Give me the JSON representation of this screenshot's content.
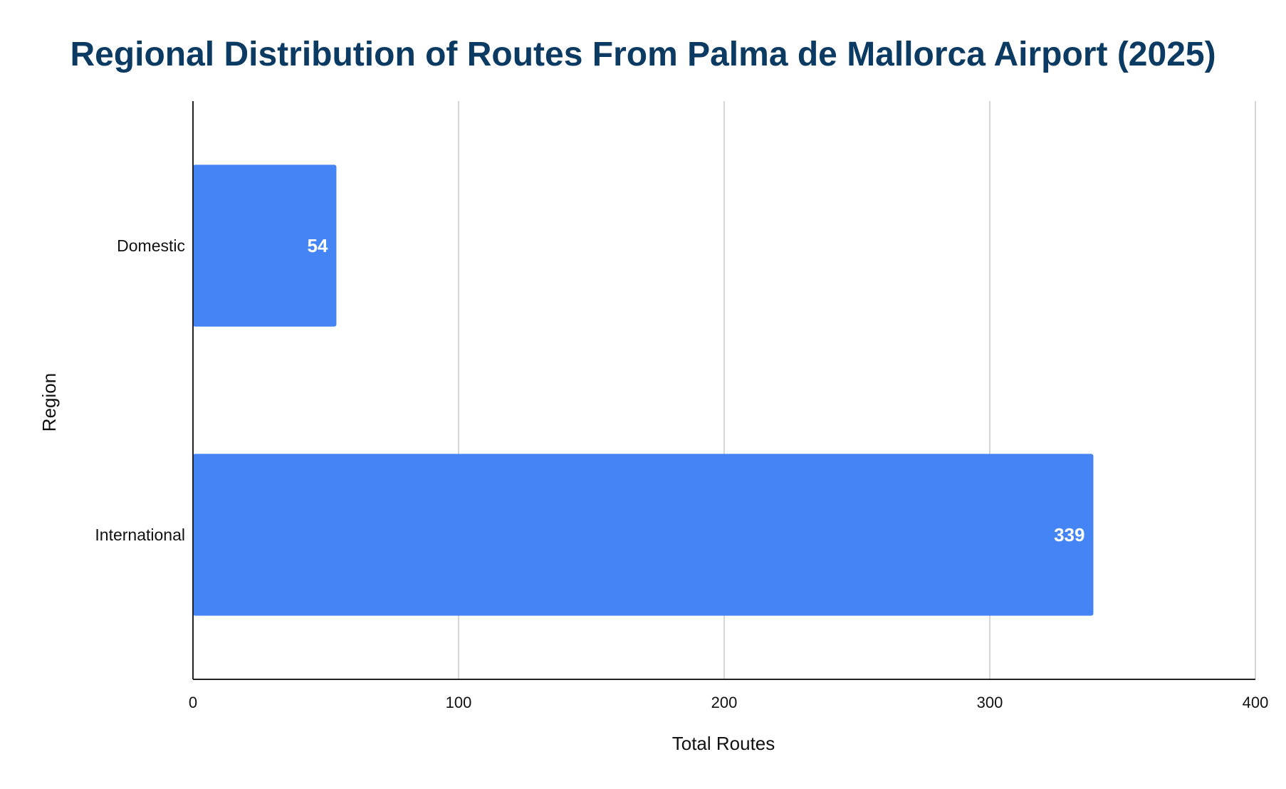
{
  "chart_data": {
    "type": "bar",
    "orientation": "horizontal",
    "title": "Regional Distribution of Routes From Palma de Mallorca Airport (2025)",
    "xlabel": "Total Routes",
    "ylabel": "Region",
    "categories": [
      "Domestic",
      "International"
    ],
    "values": [
      54,
      339
    ],
    "data_labels": [
      "54",
      "339"
    ],
    "xlim": [
      0,
      400
    ],
    "xticks": [
      0,
      100,
      200,
      300,
      400
    ],
    "xtick_labels": [
      "0",
      "100",
      "200",
      "300",
      "400"
    ],
    "grid": "vertical",
    "legend": "none",
    "colors": {
      "bar": "#4584f4",
      "title": "#0b3a63"
    }
  }
}
